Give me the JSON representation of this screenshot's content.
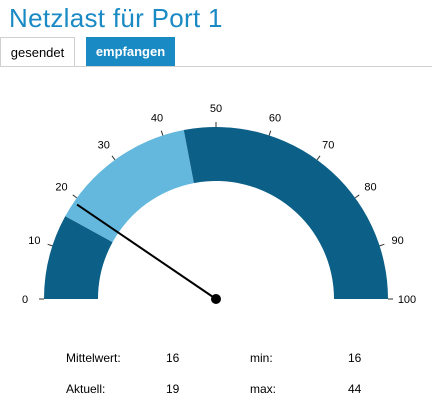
{
  "title": "Netzlast für Port 1",
  "tabs": [
    {
      "label": "gesendet",
      "active": true
    },
    {
      "label": "empfangen",
      "active": false
    }
  ],
  "colors": {
    "accent": "#1a8ac4",
    "dark_band": "#0c5f87",
    "light_band": "#64b8de"
  },
  "chart_data": {
    "type": "gauge",
    "min": 0,
    "max": 100,
    "tick_labels": [
      "0",
      "10",
      "20",
      "30",
      "40",
      "50",
      "60",
      "70",
      "80",
      "90",
      "100"
    ],
    "bands": [
      {
        "from": 0,
        "to": 16,
        "color": "dark"
      },
      {
        "from": 16,
        "to": 44,
        "color": "light"
      },
      {
        "from": 44,
        "to": 100,
        "color": "dark"
      }
    ],
    "needle_value": 19
  },
  "stats": {
    "mittelwert": {
      "label": "Mittelwert:",
      "value": "16"
    },
    "min": {
      "label": "min:",
      "value": "16"
    },
    "aktuell": {
      "label": "Aktuell:",
      "value": "19"
    },
    "max": {
      "label": "max:",
      "value": "44"
    }
  }
}
